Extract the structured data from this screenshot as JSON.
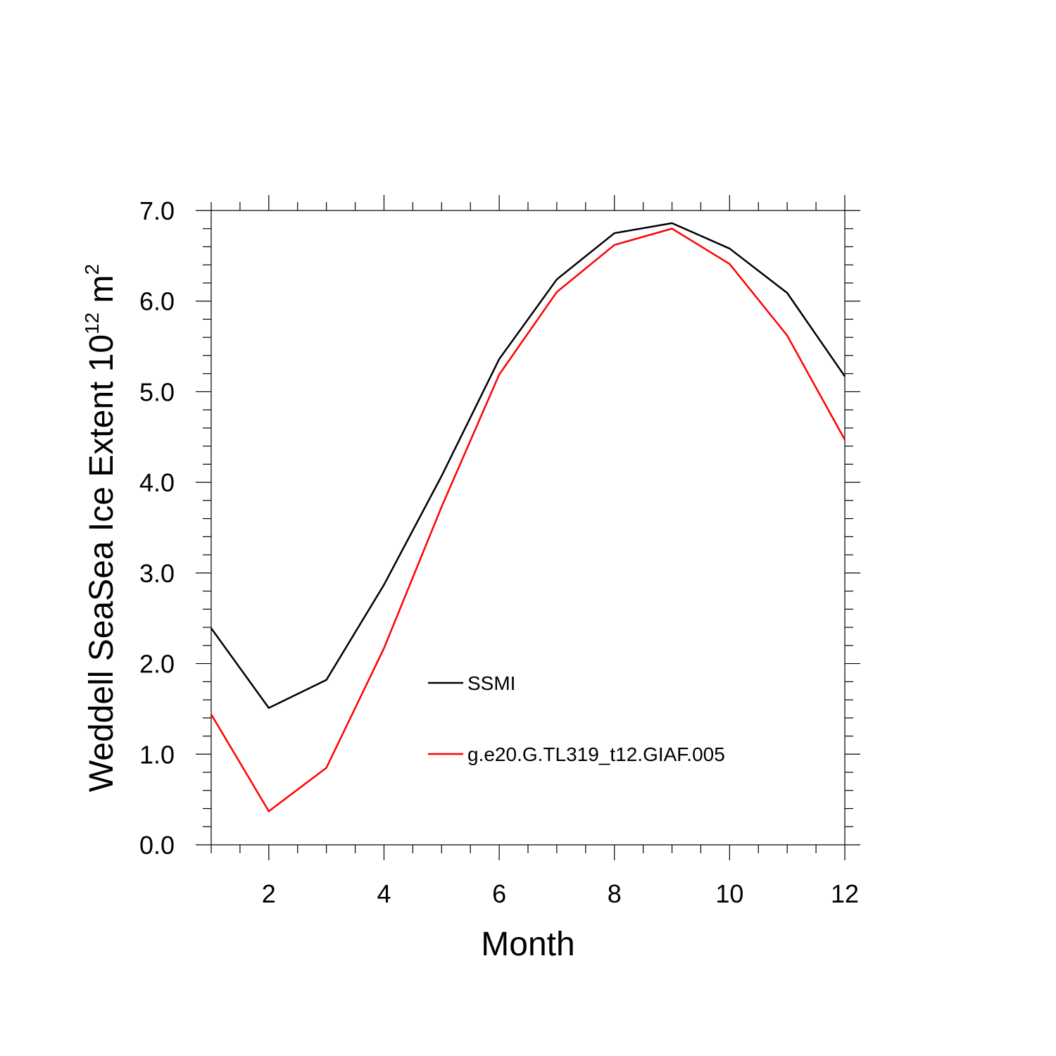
{
  "chart_data": {
    "type": "line",
    "xlabel": "Month",
    "ylabel": "Weddell SeaSea Ice Extent 10",
    "ylabel_sup": "12",
    "ylabel_unit": " m",
    "ylabel_unit_sup": "2",
    "xlim": [
      1,
      12
    ],
    "ylim": [
      0,
      7
    ],
    "x_ticks": [
      2,
      4,
      6,
      8,
      10,
      12
    ],
    "y_ticks": [
      0,
      1,
      2,
      3,
      4,
      5,
      6,
      7
    ],
    "y_tick_labels": [
      "0.0",
      "1.0",
      "2.0",
      "3.0",
      "4.0",
      "5.0",
      "6.0",
      "7.0"
    ],
    "x": [
      1,
      2,
      3,
      4,
      5,
      6,
      7,
      8,
      9,
      10,
      11,
      12
    ],
    "series": [
      {
        "name": "SSMI",
        "color": "#000000",
        "values": [
          2.39,
          1.51,
          1.82,
          2.87,
          4.07,
          5.36,
          6.24,
          6.75,
          6.86,
          6.58,
          6.09,
          5.17
        ]
      },
      {
        "name": "g.e20.G.TL319_t12.GIAF.005",
        "color": "#ff0000",
        "values": [
          1.44,
          0.37,
          0.85,
          2.17,
          3.73,
          5.19,
          6.1,
          6.62,
          6.8,
          6.41,
          5.62,
          4.47
        ]
      }
    ],
    "legend_position": "center",
    "grid": false
  }
}
